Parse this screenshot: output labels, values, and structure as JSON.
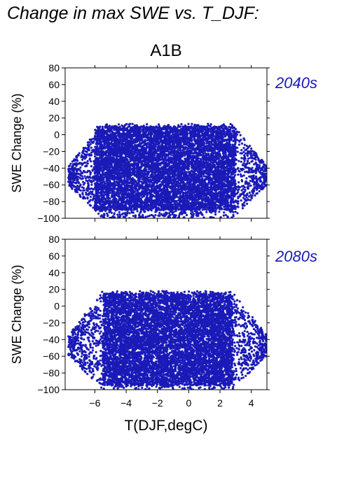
{
  "title": "Change in max SWE vs. T_DJF:",
  "scenario": "A1B",
  "colors": {
    "points": "#1a1ab8",
    "panel_label": "#1a1ab8",
    "axes": "#000000"
  },
  "chart_data": [
    {
      "type": "scatter",
      "panel_label": "2040s",
      "xlabel": "",
      "ylabel": "SWE Change (%)",
      "xlim": [
        -7.9,
        5.0
      ],
      "ylim": [
        -100,
        80
      ],
      "x_ticks": [
        -6,
        -4,
        -2,
        0,
        2,
        4
      ],
      "y_ticks": [
        -100,
        -80,
        -60,
        -40,
        -20,
        0,
        20,
        40,
        60,
        80
      ],
      "y_tick_labels": [
        "−100",
        "−80",
        "−60",
        "−40",
        "−20",
        "0",
        "20",
        "40",
        "60",
        "80"
      ],
      "show_x_tick_labels": false,
      "point_cloud": {
        "n_points": 9000,
        "x_range": [
          -7.7,
          5.0
        ],
        "y_range": [
          -100,
          13
        ],
        "dense_x_range": [
          -6.0,
          3.0
        ],
        "dense_y_range": [
          -90,
          10
        ]
      }
    },
    {
      "type": "scatter",
      "panel_label": "2080s",
      "xlabel": "T(DJF,degC)",
      "ylabel": "SWE Change (%)",
      "xlim": [
        -7.9,
        5.0
      ],
      "ylim": [
        -100,
        80
      ],
      "x_ticks": [
        -6,
        -4,
        -2,
        0,
        2,
        4
      ],
      "x_tick_labels": [
        "−6",
        "−4",
        "−2",
        "0",
        "2",
        "4"
      ],
      "y_ticks": [
        -100,
        -80,
        -60,
        -40,
        -20,
        0,
        20,
        40,
        60,
        80
      ],
      "y_tick_labels": [
        "−100",
        "−80",
        "−60",
        "−40",
        "−20",
        "0",
        "20",
        "40",
        "60",
        "80"
      ],
      "show_x_tick_labels": true,
      "point_cloud": {
        "n_points": 9000,
        "x_range": [
          -7.7,
          5.0
        ],
        "y_range": [
          -100,
          18
        ],
        "dense_x_range": [
          -5.5,
          2.8
        ],
        "dense_y_range": [
          -95,
          15
        ]
      }
    }
  ]
}
